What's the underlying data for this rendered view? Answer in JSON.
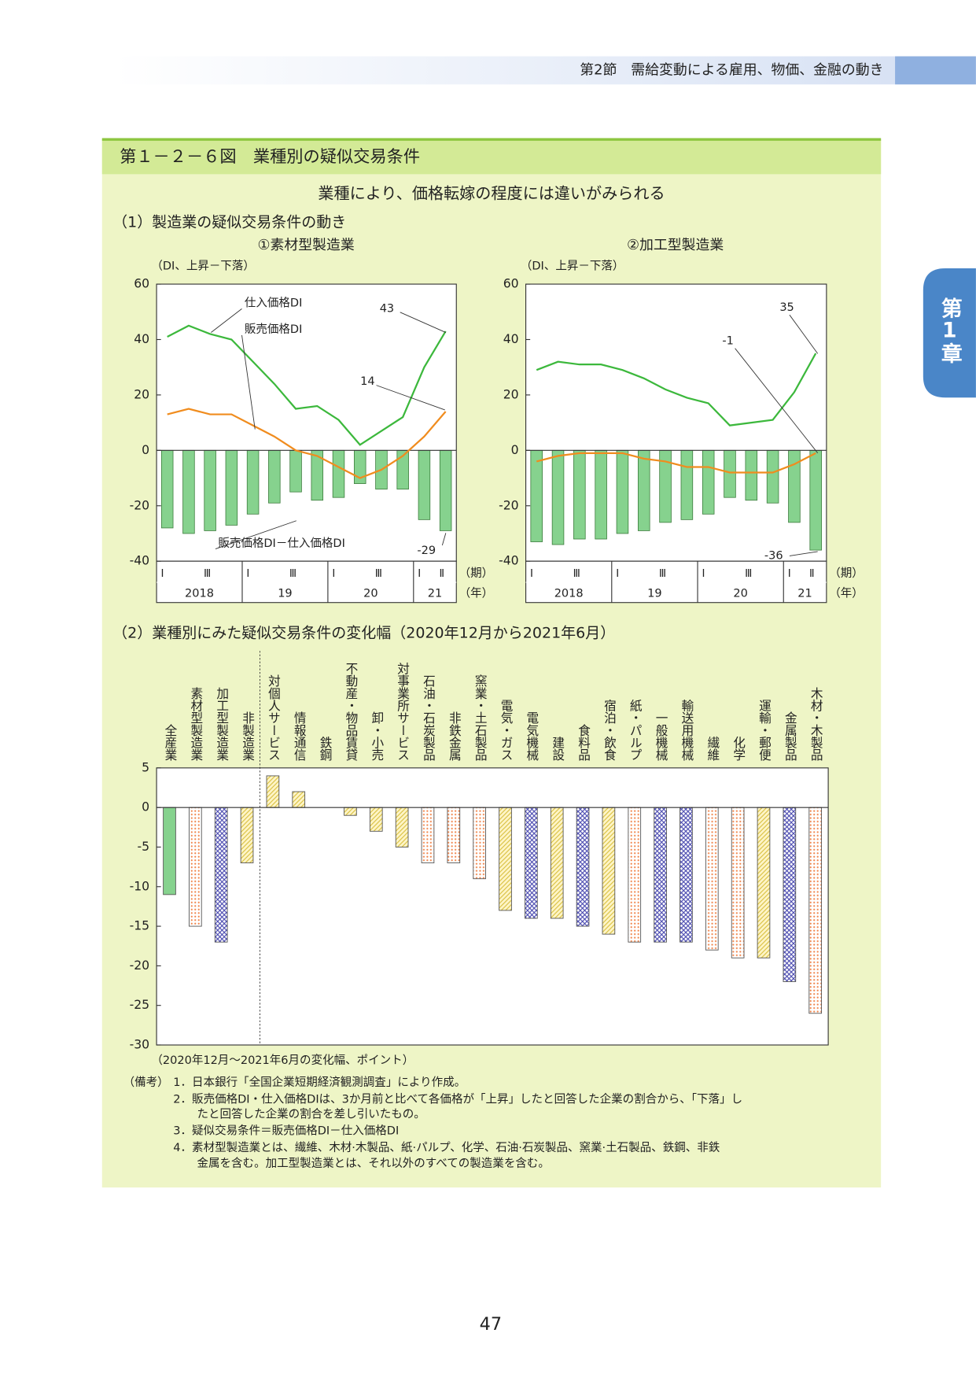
{
  "header": {
    "section": "第2節　需給変動による雇用、物価、金融の動き",
    "tab": "第1章"
  },
  "figure": {
    "title": "第１－２－６図　業種別の疑似交易条件",
    "subtitle": "業種により、価格転嫁の程度には違いがみられる",
    "part1": "（1）製造業の疑似交易条件の動き",
    "part2": "（2）業種別にみた疑似交易条件の変化幅（2020年12月から2021年6月）"
  },
  "chart_data": [
    {
      "type": "combo",
      "title": "①素材型製造業",
      "y_label": "（DI、上昇－下落）",
      "x_unit": "（期）",
      "group_unit": "（年）",
      "categories": [
        "Ⅰ",
        null,
        "Ⅲ",
        null,
        "Ⅰ",
        null,
        "Ⅲ",
        null,
        "Ⅰ",
        null,
        "Ⅲ",
        null,
        "Ⅰ",
        "Ⅱ"
      ],
      "groups": [
        "2018",
        "19",
        "20",
        "21"
      ],
      "ylim": [
        -40,
        60
      ],
      "yticks": [
        -40,
        -20,
        0,
        20,
        40,
        60
      ],
      "series": [
        {
          "name": "仕入価格DI",
          "kind": "line",
          "color": "#3cb83c",
          "values": [
            41,
            45,
            42,
            40,
            32,
            24,
            15,
            16,
            11,
            2,
            7,
            12,
            30,
            43
          ]
        },
        {
          "name": "販売価格DI",
          "kind": "line",
          "color": "#f08c1e",
          "values": [
            13,
            15,
            13,
            13,
            9,
            5,
            0,
            -2,
            -6,
            -10,
            -7,
            -2,
            5,
            14
          ]
        },
        {
          "name": "販売価格DI－仕入価格DI",
          "kind": "bar",
          "color": "#86d28e",
          "values": [
            -28,
            -30,
            -29,
            -27,
            -23,
            -19,
            -15,
            -18,
            -17,
            -12,
            -14,
            -14,
            -25,
            -29
          ]
        }
      ]
    },
    {
      "type": "combo",
      "title": "②加工型製造業",
      "y_label": "（DI、上昇－下落）",
      "x_unit": "（期）",
      "group_unit": "（年）",
      "categories": [
        "Ⅰ",
        null,
        "Ⅲ",
        null,
        "Ⅰ",
        null,
        "Ⅲ",
        null,
        "Ⅰ",
        null,
        "Ⅲ",
        null,
        "Ⅰ",
        "Ⅱ"
      ],
      "groups": [
        "2018",
        "19",
        "20",
        "21"
      ],
      "ylim": [
        -40,
        60
      ],
      "yticks": [
        -40,
        -20,
        0,
        20,
        40,
        60
      ],
      "series": [
        {
          "kind": "line",
          "color": "#3cb83c",
          "values": [
            29,
            32,
            31,
            31,
            29,
            26,
            22,
            19,
            17,
            9,
            10,
            11,
            21,
            35
          ]
        },
        {
          "kind": "line",
          "color": "#f08c1e",
          "values": [
            -4,
            -2,
            -1,
            -1,
            -1,
            -3,
            -4,
            -6,
            -6,
            -8,
            -8,
            -8,
            -5,
            -1
          ]
        },
        {
          "kind": "bar",
          "color": "#86d28e",
          "values": [
            -33,
            -34,
            -32,
            -32,
            -30,
            -29,
            -26,
            -25,
            -23,
            -17,
            -18,
            -19,
            -26,
            -36
          ]
        }
      ]
    },
    {
      "type": "bar",
      "x_label": "（2020年12月～2021年6月の変化幅、ポイント）",
      "categories": [
        "全産業",
        "素材型製造業",
        "加工型製造業",
        "非製造業",
        "対個人サービス",
        "情報通信",
        "鉄鋼",
        "不動産・物品賃貸",
        "卸・小売",
        "対事業所サービス",
        "石油・石炭製品",
        "非鉄金属",
        "窯業・土石製品",
        "電気・ガス",
        "電気機械",
        "建設",
        "食料品",
        "宿泊・飲食",
        "紙・パルプ",
        "一般機械",
        "輸送用機械",
        "繊維",
        "化学",
        "運輸・郵便",
        "金属製品",
        "木材・木製品"
      ],
      "values": [
        -11,
        -15,
        -17,
        -7,
        4,
        2,
        0,
        -1,
        -3,
        -5,
        -7,
        -7,
        -9,
        -13,
        -14,
        -14,
        -15,
        -16,
        -17,
        -17,
        -17,
        -18,
        -19,
        -19,
        -22,
        -26
      ],
      "patterns": [
        "solid",
        "dots",
        "crosshatch",
        "hatch",
        "hatch",
        "hatch",
        "dots",
        "hatch",
        "hatch",
        "hatch",
        "dots",
        "dots",
        "dots",
        "hatch",
        "crosshatch",
        "hatch",
        "crosshatch",
        "hatch",
        "dots",
        "crosshatch",
        "crosshatch",
        "dots",
        "dots",
        "hatch",
        "crosshatch",
        "dots"
      ],
      "pattern_colors": {
        "solid": "#86d28e",
        "dots": "#f0844a",
        "crosshatch": "#4a4ab0",
        "hatch": "#d8c040"
      },
      "ylim": [
        -30,
        5
      ],
      "yticks": [
        -30,
        -25,
        -20,
        -15,
        -10,
        -5,
        0,
        5
      ]
    }
  ],
  "notes": {
    "label": "（備考）",
    "lines": [
      "1．日本銀行「全国企業短期経済観測調査」により作成。",
      "2．販売価格DI・仕入価格DIは、3か月前と比べて各価格が「上昇」したと回答した企業の割合から、「下落」し",
      "たと回答した企業の割合を差し引いたもの。",
      "3．疑似交易条件＝販売価格DI－仕入価格DI",
      "4．素材型製造業とは、繊維、木材·木製品、紙·パルプ、化学、石油·石炭製品、窯業·土石製品、鉄鋼、非鉄",
      "金属を含む。加工型製造業とは、それ以外のすべての製造業を含む。"
    ]
  },
  "page_number": "47"
}
